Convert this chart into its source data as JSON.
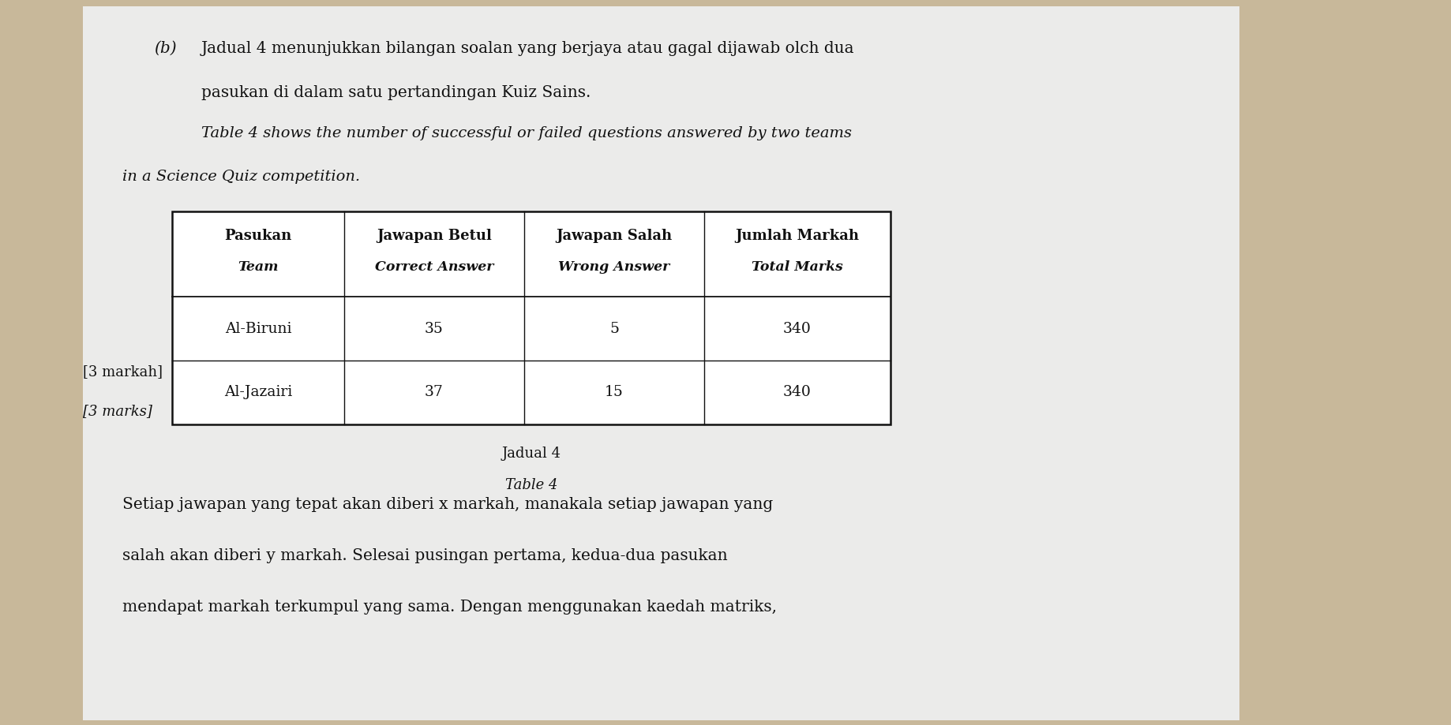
{
  "bg_color": "#c8b89a",
  "paper_color": "#ebebea",
  "part_label": "(b)",
  "text_line1": "Jadual 4 menunjukkan bilangan soalan yang berjaya atau gagal dijawab olch dua",
  "text_line2": "pasukan di dalam satu pertandingan Kuiz Sains.",
  "text_line3_italic": "Table 4 shows the number of successful or failed questions answered by two teams",
  "text_line4_italic": "in a Science Quiz competition.",
  "table_headers_row1": [
    "Pasukan",
    "Jawapan Betul",
    "Jawapan Salah",
    "Jumlah Markah"
  ],
  "table_headers_row2": [
    "Team",
    "Correct Answer",
    "Wrong Answer",
    "Total Marks"
  ],
  "table_data": [
    [
      "Al-Biruni",
      "35",
      "5",
      "340"
    ],
    [
      "Al-Jazairi",
      "37",
      "15",
      "340"
    ]
  ],
  "caption_line1": "Jadual 4",
  "caption_line2": "Table 4",
  "left_label1": "[3 markah]",
  "left_label2": "[3 marks]",
  "bottom_text1": "Setiap jawapan yang tepat akan diberi x markah, manakala setiap jawapan yang",
  "bottom_text2": "salah akan diberi y markah. Selesai pusingan pertama, kedua-dua pasukan",
  "bottom_text3": "mendapat markah terkumpul yang sama. Dengan menggunakan kaedah matriks,",
  "font_size_body": 14.5,
  "font_size_table": 13,
  "font_size_label": 13
}
